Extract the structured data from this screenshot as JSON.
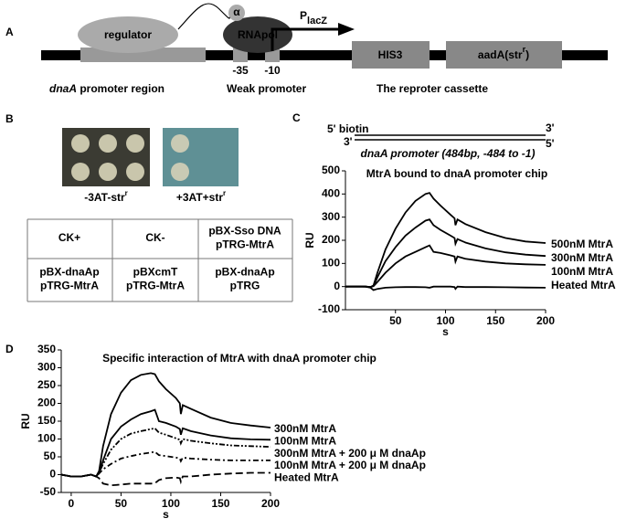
{
  "panel_a": {
    "label": "A",
    "regulator": "regulator",
    "alpha": "α",
    "rnapol": "RNApol",
    "promoter": {
      "main": "P",
      "sub": "lacZ"
    },
    "minus35": "-35",
    "minus10": "-10",
    "his3": "HIS3",
    "aada": {
      "main": "aadA(str",
      "sup": "r",
      "end": ")"
    },
    "captions": [
      {
        "italic": "dnaA",
        "rest": " promoter region"
      },
      {
        "italic": "",
        "rest": "Weak promoter"
      },
      {
        "italic": "",
        "rest": "The reproter cassette"
      }
    ]
  },
  "panel_b": {
    "label": "B",
    "plate_labels": [
      {
        "main": "-3AT-str",
        "sup": "r"
      },
      {
        "main": "+3AT+str",
        "sup": "r"
      }
    ],
    "table": [
      [
        [
          "CK+"
        ],
        [
          "CK-"
        ],
        [
          "pBX-Sso DNA",
          "pTRG-MtrA"
        ]
      ],
      [
        [
          "pBX-dnaAp",
          "pTRG-MtrA"
        ],
        [
          "pBXcmT",
          "pTRG-MtrA"
        ],
        [
          "pBX-dnaAp",
          "pTRG"
        ]
      ]
    ]
  },
  "panel_c": {
    "dna": {
      "left5": "5' biotin",
      "left3": "3'",
      "right3": "3'",
      "right5": "5'",
      "caption": "dnaA promoter (484bp, -484 to -1)"
    }
  },
  "chart_data": [
    {
      "type": "line",
      "panel_label": "C",
      "title": "MtrA bound to dnaA promoter chip",
      "y_label": "RU",
      "x_label": "s",
      "xlim": [
        0,
        200
      ],
      "xticks": [
        50,
        100,
        150,
        200
      ],
      "ylim": [
        -100,
        500
      ],
      "yticks": [
        -100,
        0,
        100,
        200,
        300,
        400,
        500
      ],
      "x": [
        0,
        10,
        20,
        25,
        28,
        32,
        40,
        50,
        60,
        70,
        80,
        84,
        88,
        95,
        105,
        109,
        110,
        112,
        120,
        140,
        160,
        180,
        200
      ],
      "series": [
        {
          "name": "500nM MtrA",
          "color": "#000000",
          "dash": "solid",
          "values": [
            0,
            1,
            0,
            -2,
            5,
            60,
            160,
            250,
            320,
            370,
            400,
            405,
            380,
            350,
            310,
            295,
            265,
            290,
            270,
            235,
            210,
            195,
            188
          ]
        },
        {
          "name": "300nM MtrA",
          "color": "#000000",
          "dash": "solid",
          "values": [
            0,
            0,
            0,
            -2,
            3,
            40,
            110,
            170,
            220,
            255,
            285,
            290,
            265,
            245,
            220,
            210,
            185,
            205,
            190,
            165,
            148,
            138,
            132
          ]
        },
        {
          "name": "100nM MtrA",
          "color": "#000000",
          "dash": "solid",
          "values": [
            0,
            0,
            0,
            -2,
            2,
            20,
            60,
            100,
            130,
            150,
            170,
            178,
            150,
            145,
            135,
            130,
            108,
            130,
            120,
            108,
            100,
            96,
            94
          ]
        },
        {
          "name": "Heated MtrA",
          "color": "#000000",
          "dash": "solid",
          "values": [
            0,
            0,
            0,
            -5,
            -15,
            -10,
            -5,
            -3,
            -2,
            -2,
            -3,
            -5,
            0,
            0,
            0,
            -2,
            -10,
            0,
            -2,
            -2,
            -3,
            -4,
            -5
          ]
        }
      ]
    },
    {
      "type": "line",
      "panel_label": "D",
      "title": "Specific interaction of MtrA with dnaA promoter chip",
      "y_label": "RU",
      "x_label": "s",
      "xlim": [
        -10,
        200
      ],
      "xticks": [
        0,
        50,
        100,
        150,
        200
      ],
      "ylim": [
        -50,
        350
      ],
      "yticks": [
        -50,
        0,
        50,
        100,
        150,
        200,
        250,
        300,
        350
      ],
      "x": [
        -10,
        0,
        10,
        20,
        25,
        28,
        32,
        40,
        50,
        60,
        70,
        80,
        84,
        88,
        95,
        105,
        109,
        110,
        112,
        120,
        140,
        160,
        180,
        200
      ],
      "series": [
        {
          "name": "300nM MtrA",
          "color": "#000000",
          "dash": "solid",
          "values": [
            0,
            -5,
            -5,
            0,
            -5,
            10,
            80,
            170,
            230,
            265,
            280,
            285,
            282,
            262,
            240,
            215,
            200,
            170,
            195,
            185,
            160,
            145,
            138,
            132
          ]
        },
        {
          "name": "100nM MtrA",
          "color": "#000000",
          "dash": "solid",
          "values": [
            0,
            -5,
            -5,
            0,
            -5,
            5,
            40,
            100,
            135,
            155,
            170,
            178,
            182,
            150,
            145,
            135,
            128,
            112,
            130,
            122,
            110,
            102,
            99,
            98
          ]
        },
        {
          "name": "300nM MtrA + 200 μ M dnaAp",
          "color": "#000000",
          "dash": "dashdotdot",
          "values": [
            0,
            -5,
            -5,
            0,
            -5,
            5,
            30,
            70,
            100,
            115,
            122,
            128,
            130,
            118,
            112,
            102,
            98,
            88,
            100,
            95,
            88,
            82,
            80,
            78
          ]
        },
        {
          "name": "100nM MtrA + 200 μ M dnaAp",
          "color": "#000000",
          "dash": "dashdot",
          "values": [
            0,
            -5,
            -5,
            0,
            -5,
            3,
            15,
            30,
            45,
            52,
            58,
            62,
            64,
            55,
            52,
            48,
            45,
            38,
            48,
            45,
            42,
            40,
            40,
            40
          ]
        },
        {
          "name": "Heated MtrA",
          "color": "#000000",
          "dash": "dashed",
          "values": [
            0,
            -5,
            -5,
            0,
            -5,
            -10,
            -25,
            -30,
            -28,
            -25,
            -25,
            -25,
            -24,
            -15,
            -10,
            -8,
            -10,
            -20,
            -5,
            -5,
            0,
            3,
            5,
            5
          ]
        }
      ]
    }
  ]
}
